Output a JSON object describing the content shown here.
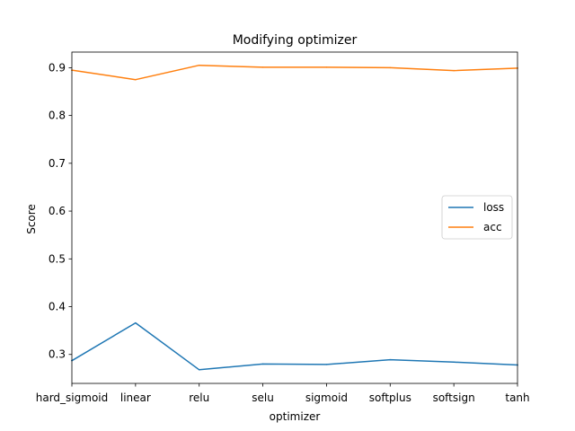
{
  "chart_data": {
    "type": "line",
    "title": "Modifying optimizer",
    "xlabel": "optimizer",
    "ylabel": "Score",
    "categories": [
      "hard_sigmoid",
      "linear",
      "relu",
      "selu",
      "sigmoid",
      "softplus",
      "softsign",
      "tanh"
    ],
    "series": [
      {
        "name": "loss",
        "color": "#1f77b4",
        "values": [
          0.287,
          0.366,
          0.268,
          0.28,
          0.279,
          0.289,
          0.284,
          0.278
        ]
      },
      {
        "name": "acc",
        "color": "#ff7f0e",
        "values": [
          0.895,
          0.875,
          0.905,
          0.901,
          0.901,
          0.9,
          0.894,
          0.899
        ]
      }
    ],
    "ylim": [
      0.2394,
      0.9327
    ],
    "yticks": [
      0.3,
      0.4,
      0.5,
      0.6,
      0.7,
      0.8,
      0.9
    ],
    "ytick_labels": [
      "0.3",
      "0.4",
      "0.5",
      "0.6",
      "0.7",
      "0.8",
      "0.9"
    ],
    "grid": false,
    "legend_position": "center-right"
  }
}
